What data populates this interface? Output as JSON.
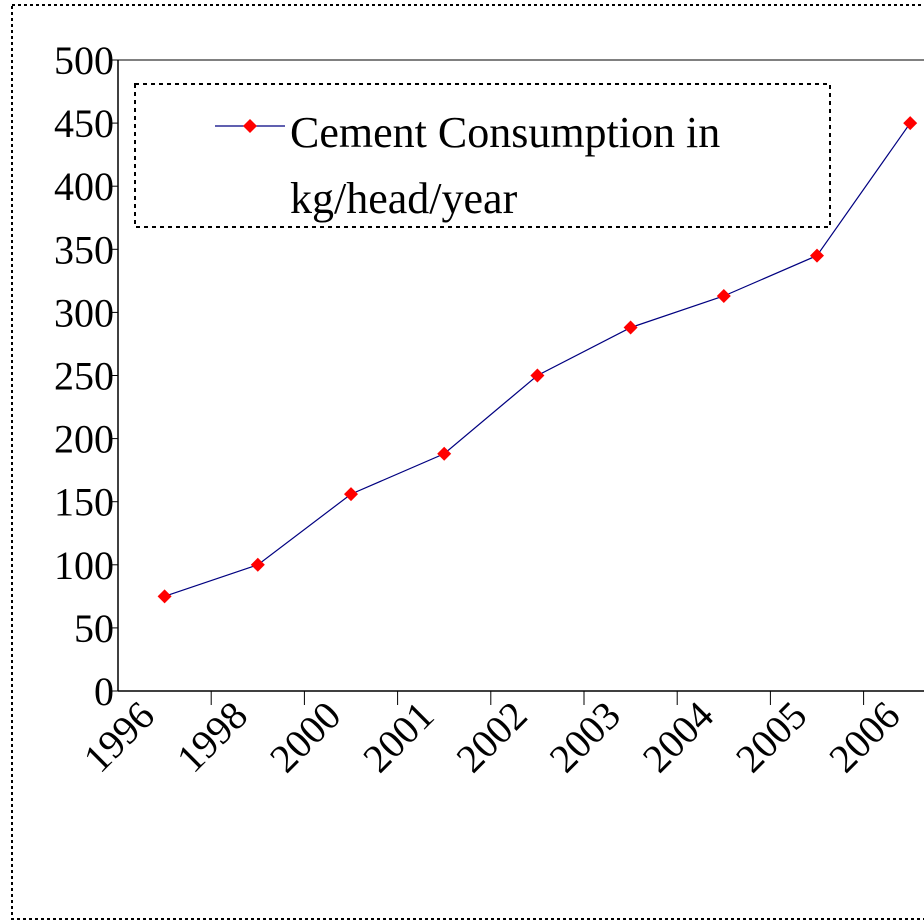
{
  "chart_data": {
    "type": "line",
    "categories": [
      "1996",
      "1998",
      "2000",
      "2001",
      "2002",
      "2003",
      "2004",
      "2005",
      "2006"
    ],
    "series": [
      {
        "name": "Cement Consumption in kg/head/year",
        "color": "#000080",
        "marker_color": "#ff0000",
        "values": [
          75,
          100,
          156,
          188,
          250,
          288,
          313,
          345,
          450
        ]
      }
    ],
    "ylim": [
      0,
      500
    ],
    "yticks": [
      0,
      50,
      100,
      150,
      200,
      250,
      300,
      350,
      400,
      450,
      500
    ],
    "legend": "top-left"
  }
}
